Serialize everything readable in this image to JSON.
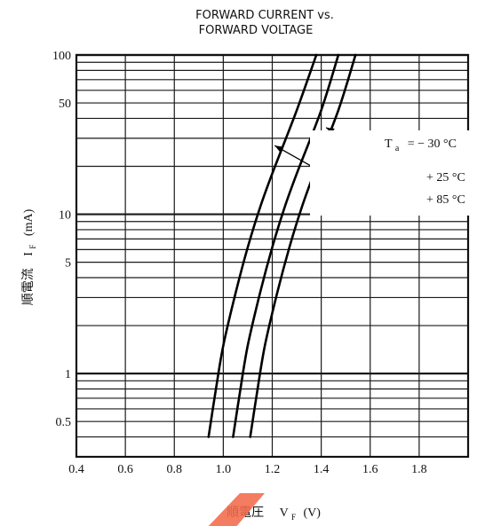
{
  "chart_data": {
    "type": "line",
    "title_line1": "FORWARD CURRENT vs.",
    "title_line2": "FORWARD VOLTAGE",
    "ylabel_jp": "順電流",
    "ylabel_symbol": "I",
    "ylabel_sub": "F",
    "ylabel_unit": "(mA)",
    "xlabel_jp": "順電圧",
    "xlabel_symbol": "V",
    "xlabel_sub": "F",
    "xlabel_unit": "(V)",
    "x_scale": "linear",
    "y_scale": "log",
    "xlim": [
      0.4,
      2.0
    ],
    "ylim": [
      0.3,
      100
    ],
    "x_ticks": [
      0.4,
      0.6,
      0.8,
      1.0,
      1.2,
      1.4,
      1.6,
      1.8
    ],
    "x_tick_labels": [
      "0.4",
      "0.6",
      "0.8",
      "1.0",
      "1.2",
      "1.4",
      "1.6",
      "1.8"
    ],
    "y_ticks": [
      0.5,
      1,
      5,
      10,
      50,
      100
    ],
    "y_tick_labels": [
      "0.5",
      "1",
      "5",
      "10",
      "50",
      "100"
    ],
    "grid": true,
    "series": [
      {
        "name": "Ta = − 30 °C",
        "label_ta": "T",
        "label_ta_sub": "a",
        "label_rest": "= − 30 °C",
        "x": [
          0.94,
          0.97,
          1.0,
          1.05,
          1.1,
          1.15,
          1.2,
          1.3,
          1.38
        ],
        "y": [
          0.4,
          0.8,
          1.5,
          3.2,
          6.2,
          11,
          18,
          45,
          100
        ]
      },
      {
        "name": "+ 25 °C",
        "label_text": "+ 25 °C",
        "x": [
          1.04,
          1.07,
          1.1,
          1.15,
          1.2,
          1.25,
          1.3,
          1.4,
          1.47
        ],
        "y": [
          0.4,
          0.8,
          1.5,
          3.2,
          6.2,
          11,
          18,
          45,
          100
        ]
      },
      {
        "name": "+ 85 °C",
        "label_text": "+ 85 °C",
        "x": [
          1.11,
          1.14,
          1.17,
          1.22,
          1.27,
          1.32,
          1.37,
          1.47,
          1.54
        ],
        "y": [
          0.4,
          0.8,
          1.5,
          3.2,
          6.2,
          11,
          18,
          45,
          100
        ]
      }
    ],
    "annotations": [
      {
        "series": 0,
        "from": [
          1.42,
          35
        ],
        "to": [
          1.64,
          23
        ]
      },
      {
        "series": 1,
        "from": [
          1.38,
          29
        ],
        "to": [
          1.66,
          14
        ]
      },
      {
        "series": 2,
        "from": [
          1.21,
          27
        ],
        "to": [
          1.66,
          11
        ]
      }
    ]
  }
}
